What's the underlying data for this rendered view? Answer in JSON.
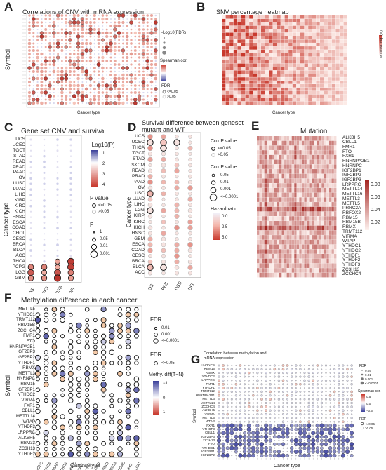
{
  "panels": {
    "A": {
      "label": "A",
      "title": "Correlations of CNV with mRNA expression",
      "ylabel": "Symbol",
      "xlabel": "Cancer type",
      "legend": {
        "size_title": "-Log10(FDR)",
        "size_vals": [
          "0.00",
          "0.27",
          "0.63",
          "1.07"
        ],
        "color_title": "Spearman cor.",
        "color_vals": [
          "1.0",
          "0.5",
          "0.0"
        ],
        "fdr_title": "FDR",
        "fdr_vals": [
          "<=0.05",
          ">0.05"
        ]
      }
    },
    "B": {
      "label": "B",
      "title": "SNV percentage heatmap",
      "xlabel": "Cancer type",
      "legend_title": "Mutation freq. (%)"
    },
    "C": {
      "label": "C",
      "title": "Gene set CNV and survival",
      "ylabel": "Cancer type",
      "rows": [
        "UCS",
        "UCEC",
        "TGCT",
        "STAD",
        "READ",
        "PRAD",
        "PAAD",
        "OV",
        "LUSC",
        "LUAD",
        "LIHC",
        "KIRP",
        "KIRC",
        "KICH",
        "HNSC",
        "ESCA",
        "COAD",
        "CHOL",
        "CESC",
        "BRCA",
        "BLCA",
        "ACC",
        "THCA",
        "PCPG",
        "LGG",
        "GBM"
      ],
      "cols": [
        "OS",
        "PFS",
        "DSS",
        "DFI"
      ],
      "legend": {
        "color_title": "−Log10(P)",
        "color_vals": [
          "1",
          "2",
          "3",
          "4"
        ],
        "pval_title": "P value",
        "pval_vals": [
          "<=0.05",
          ">0.05"
        ],
        "p_title": "P",
        "p_vals": [
          "1",
          "0.05",
          "0.01",
          "0.001"
        ]
      }
    },
    "D": {
      "label": "D",
      "title1": "Survival difference between geneset",
      "title2": "mutant and WT",
      "ylabel": "Cancer type",
      "rows": [
        "UCS",
        "UCEC",
        "THCA",
        "TGCT",
        "STAD",
        "SKCM",
        "READ",
        "PRAD",
        "PAAD",
        "OV",
        "LUSC",
        "LUAD",
        "LIHC",
        "LGG",
        "KIRP",
        "KIRC",
        "KICH",
        "HNSC",
        "GBM",
        "ESCA",
        "COAD",
        "CESC",
        "BRCA",
        "BLCA",
        "ACC"
      ],
      "cols": [
        "OS",
        "PFS",
        "DSS",
        "DFI"
      ],
      "legend": {
        "cox_title": "Cox P value",
        "cox_vals": [
          "<=0.05",
          ">0.05"
        ],
        "cox2_title": "Cox P value",
        "cox2_vals": [
          "0.05",
          "0.01",
          "0.001",
          "<=0.0001"
        ],
        "hr_title": "Hazard ratio",
        "hr_vals": [
          "0.0",
          "2.5",
          "5.0"
        ]
      }
    },
    "E": {
      "label": "E",
      "title": "Mutation",
      "rows": [
        "ALKBH5",
        "CBLL1",
        "FMR1",
        "FTO",
        "FXR1",
        "HNRNPA2B1",
        "HNRNPC",
        "IGF2BP1",
        "IGF2BP2",
        "IGF2BP3",
        "LRPPRC",
        "METTL14",
        "METTL16",
        "METTL3",
        "METTL5",
        "PRRC2A",
        "RBFOX2",
        "RBM15",
        "RBM15B",
        "RBMX",
        "TRMT112",
        "VIRMA",
        "WTAP",
        "YTHDC1",
        "YTHDC2",
        "YTHDF1",
        "YTHDF2",
        "YTHDF3",
        "ZC3H13",
        "ZCCHC4"
      ],
      "scale": [
        "0.08",
        "0.06",
        "0.04",
        "0.02"
      ]
    },
    "F": {
      "label": "F",
      "title": "Methylation difference in each cancer",
      "ylabel": "Symbol",
      "xlabel": "Cancer type",
      "rows": [
        "METTL5",
        "YTHDC1",
        "TRMT112",
        "RBM15B",
        "ZCCHC4",
        "FMR1",
        "FTO",
        "HNRNPA2B1",
        "IGF2BP3",
        "IGF2BP2",
        "YTHDF1",
        "RBMX",
        "METTL3",
        "HNRNPC",
        "RBM15",
        "IGF2BP1",
        "YTHDC2",
        "VIRMA",
        "FXR1",
        "CBLL1",
        "METTL14",
        "WTAP",
        "YTHDF3",
        "LRPPRC",
        "ALKBH5",
        "RBM33",
        "ZC3H13",
        "YTHDF2"
      ],
      "cols": [
        "UCEC",
        "ESCA",
        "PAAD",
        "THCA",
        "HNSC",
        "KIRC",
        "KIRP",
        "LUAD",
        "PRAD",
        "BRCA",
        "COAD",
        "LIHC",
        "LUSC"
      ],
      "legend": {
        "fdr_title": "FDR",
        "fdr_vals": [
          "0.01",
          "0.001",
          "<=0.0001"
        ],
        "fdr2_title": "FDR",
        "fdr2_vals": [
          "<=0.05"
        ],
        "diff_title": "Methy. diff(T−N)",
        "diff_vals": [
          "1",
          "0",
          "−1"
        ]
      }
    },
    "G": {
      "label": "G",
      "title1": "Correlation between methylation and",
      "title2": "mRNA expression",
      "ylabel": "Symbol",
      "xlabel": "Cancer type",
      "rows": [
        "HNRNPC",
        "RBM15",
        "RBMX",
        "YTHDC2",
        "LRPPRC",
        "FMR1",
        "YTHDF1",
        "TRMT112",
        "HNRNPA2B1",
        "METTL3",
        "METTL14",
        "ZCCHC4",
        "ALKBH5",
        "VIRMA",
        "METTL5",
        "WTAP",
        "FXR1",
        "YTHDF3",
        "CBLL1",
        "IGF2BP3",
        "ZC3H13",
        "FTO",
        "YTHDC1",
        "IGF2BP1",
        "IGF2BP2"
      ],
      "legend": {
        "fdr_title": "FDR",
        "fdr_vals": [
          "0.05",
          "0.01",
          "0.001",
          "<=0.0001"
        ],
        "sp_title": "Spearman cor.",
        "sp_vals": [
          "0.5",
          "0.0",
          "−0.5"
        ],
        "fdr2_title": "FDR",
        "fdr2_vals": [
          "<=0.05",
          ">0.05"
        ]
      }
    }
  },
  "colors": {
    "red": "#c8382c",
    "blue": "#3a3f9a",
    "pale": "#f3c9c0"
  }
}
